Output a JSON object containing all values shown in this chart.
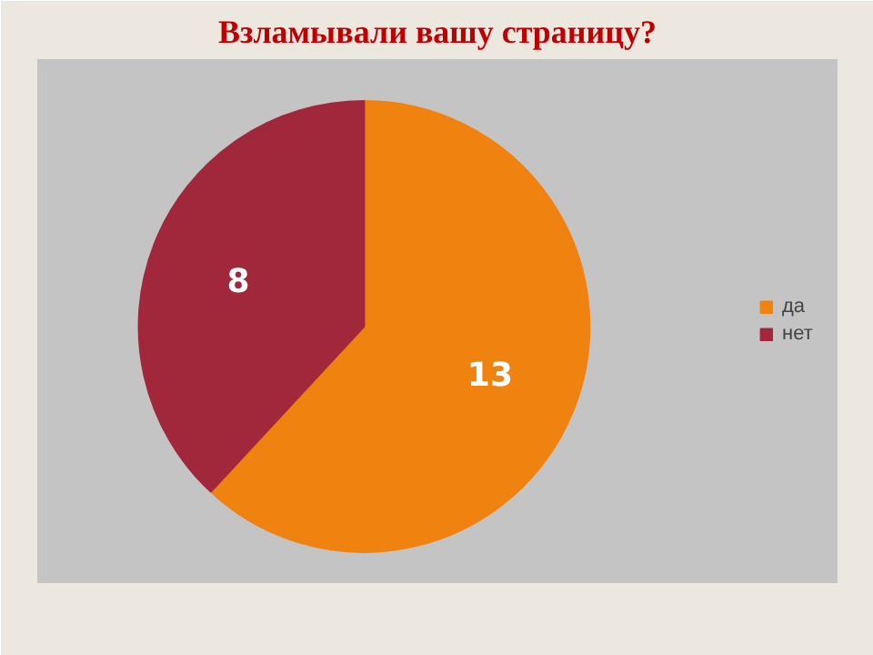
{
  "chart_data": {
    "type": "pie",
    "title": "Взламывали вашу страницу?",
    "categories": [
      "да",
      "нет"
    ],
    "values": [
      13,
      8
    ],
    "colors": [
      "#f0820f",
      "#a0283a"
    ],
    "data_labels": true,
    "legend": "right"
  }
}
